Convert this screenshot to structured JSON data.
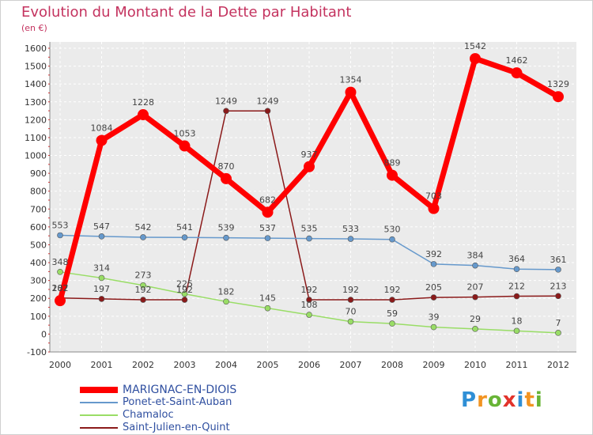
{
  "header": {
    "title": "Evolution du Montant de la Dette par Habitant",
    "unit": "(en €)"
  },
  "logo": {
    "text": "Proxiti",
    "colors": [
      "#2f8fd6",
      "#f29422",
      "#68b436",
      "#e2332b"
    ]
  },
  "chart_data": {
    "type": "line",
    "title": "Evolution du Montant de la Dette par Habitant",
    "subtitle": "(en €)",
    "xlabel": "",
    "ylabel": "",
    "ylim": [
      -100,
      1600
    ],
    "yticks": [
      -100,
      0,
      100,
      200,
      300,
      400,
      500,
      600,
      700,
      800,
      900,
      1000,
      1100,
      1200,
      1300,
      1400,
      1500,
      1600
    ],
    "categories": [
      "2000",
      "2001",
      "2002",
      "2003",
      "2004",
      "2005",
      "2006",
      "2007",
      "2008",
      "2009",
      "2010",
      "2011",
      "2012"
    ],
    "grid": true,
    "legend": "bottom-left",
    "series": [
      {
        "name": "MARIGNAC-EN-DIOIS",
        "color": "#ff0000",
        "width": 7,
        "marker": 7,
        "values": [
          187,
          1084,
          1228,
          1053,
          870,
          682,
          937,
          1354,
          889,
          703,
          1542,
          1462,
          1329
        ],
        "labels": [
          "187",
          "1084",
          "1228",
          "1053",
          "870",
          "682",
          "937",
          "1354",
          "889",
          "703",
          "1542",
          "1462",
          "1329"
        ]
      },
      {
        "name": "Ponet-et-Saint-Auban",
        "color": "#6699cc",
        "width": 1.5,
        "marker": 3.5,
        "values": [
          553,
          547,
          542,
          541,
          539,
          537,
          535,
          533,
          530,
          392,
          384,
          364,
          361
        ],
        "labels": [
          "553",
          "547",
          "542",
          "541",
          "539",
          "537",
          "535",
          "533",
          "530",
          "392",
          "384",
          "364",
          "361"
        ]
      },
      {
        "name": "Chamaloc",
        "color": "#99dd66",
        "width": 1.5,
        "marker": 3.5,
        "values": [
          348,
          314,
          273,
          225,
          182,
          145,
          108,
          70,
          59,
          39,
          29,
          18,
          7
        ],
        "labels": [
          "348",
          "314",
          "273",
          "225",
          "182",
          "145",
          "108",
          "70",
          "59",
          "39",
          "29",
          "18",
          "7"
        ]
      },
      {
        "name": "Saint-Julien-en-Quint",
        "color": "#8b1a1a",
        "width": 1.5,
        "marker": 3.5,
        "values": [
          202,
          197,
          192,
          192,
          1249,
          1249,
          192,
          192,
          192,
          205,
          207,
          212,
          213
        ],
        "labels": [
          "202",
          "197",
          "192",
          "192",
          "1249",
          "1249",
          "192",
          "192",
          "192",
          "205",
          "207",
          "212",
          "213"
        ]
      }
    ]
  }
}
